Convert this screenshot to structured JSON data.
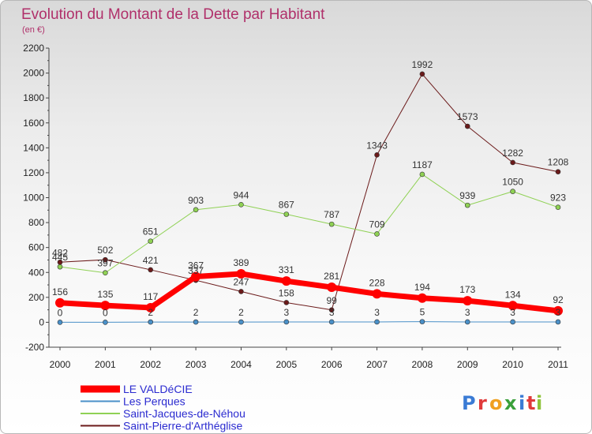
{
  "chart_data": {
    "type": "line",
    "title": "Evolution du Montant de la Dette par Habitant",
    "subtitle": "(en €)",
    "x": [
      "2000",
      "2001",
      "2002",
      "2003",
      "2004",
      "2005",
      "2006",
      "2007",
      "2008",
      "2009",
      "2010",
      "2011"
    ],
    "ylim": [
      -200,
      2200
    ],
    "yticks": [
      -200,
      0,
      200,
      400,
      600,
      800,
      1000,
      1200,
      1400,
      1600,
      1800,
      2000,
      2200
    ],
    "grid": false,
    "legend_position": "bottom-left",
    "series": [
      {
        "name": "Saint-Pierre-d'Arthéglise",
        "color": "#6b1a1a",
        "line_width": 1,
        "values": [
          482,
          502,
          421,
          337,
          247,
          158,
          99,
          1343,
          1992,
          1573,
          1282,
          1208
        ]
      },
      {
        "name": "Saint-Jacques-de-Néhou",
        "color": "#8fd154",
        "line_width": 1,
        "values": [
          445,
          397,
          651,
          903,
          944,
          867,
          787,
          709,
          1187,
          939,
          1050,
          923
        ]
      },
      {
        "name": "Les Perques",
        "color": "#4a90c8",
        "line_width": 1,
        "values": [
          0,
          0,
          2,
          2,
          2,
          3,
          3,
          3,
          5,
          3,
          3,
          3
        ]
      },
      {
        "name": "LE VALDéCIE",
        "color": "#ff0000",
        "line_width": 7,
        "values": [
          156,
          135,
          117,
          367,
          389,
          331,
          281,
          228,
          194,
          173,
          134,
          92
        ]
      }
    ],
    "legend_order": [
      "LE VALDéCIE",
      "Les Perques",
      "Saint-Jacques-de-Néhou",
      "Saint-Pierre-d'Arthéglise"
    ]
  },
  "logo": {
    "letters": [
      "P",
      "r",
      "o",
      "x",
      "i",
      "t",
      "i"
    ],
    "colors": [
      "#3a7bd5",
      "#e03a3a",
      "#f0a020",
      "#3aa03a",
      "#3a7bd5",
      "#e03a3a",
      "#8fc33a"
    ]
  }
}
